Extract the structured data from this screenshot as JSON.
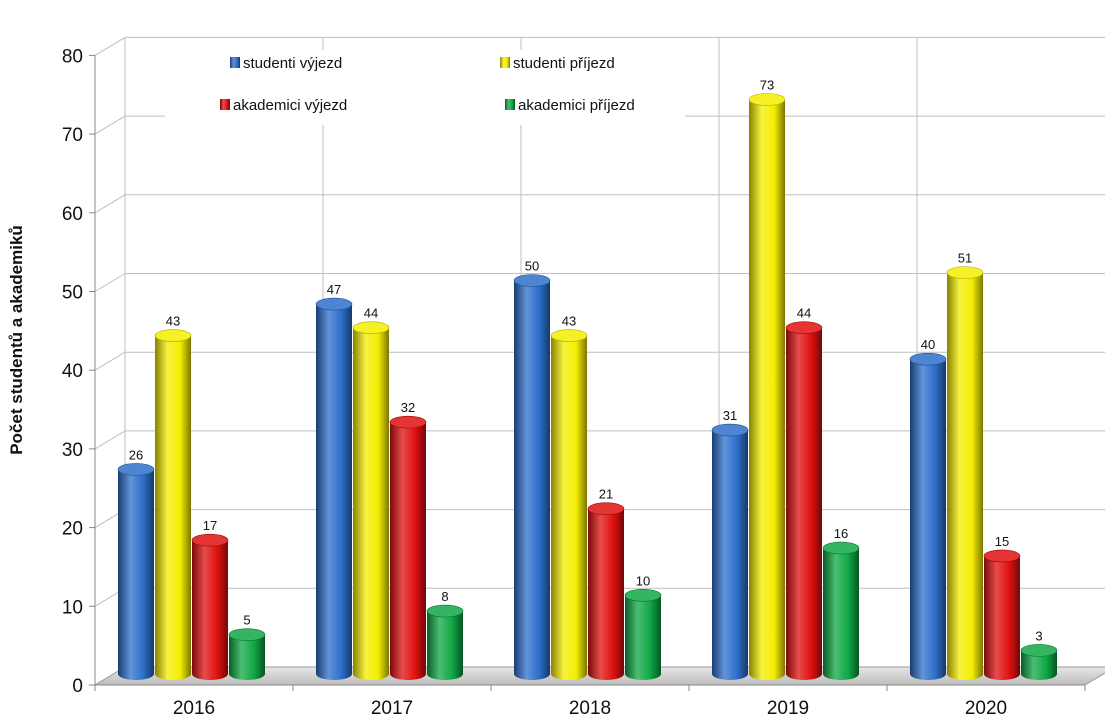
{
  "chart_data": {
    "type": "bar",
    "categories": [
      "2016",
      "2017",
      "2018",
      "2019",
      "2020"
    ],
    "series": [
      {
        "name": "studenti výjezd",
        "color": "#2e6fcb",
        "values": [
          26,
          47,
          50,
          31,
          40
        ]
      },
      {
        "name": "studenti příjezd",
        "color": "#f4ee00",
        "values": [
          43,
          44,
          43,
          73,
          51
        ]
      },
      {
        "name": "akademici výjezd",
        "color": "#e01010",
        "values": [
          17,
          32,
          21,
          44,
          15
        ]
      },
      {
        "name": "akademici příjezd",
        "color": "#0fa845",
        "values": [
          5,
          8,
          10,
          16,
          3
        ]
      }
    ],
    "title": "",
    "xlabel": "",
    "ylabel": "Počet studentů a akademiků",
    "ylim": [
      0,
      80
    ],
    "yticks": [
      0,
      10,
      20,
      30,
      40,
      50,
      60,
      70,
      80
    ],
    "grid": true,
    "legend": "top-left inside",
    "data_labels": true,
    "style": "3d-cylinder"
  }
}
